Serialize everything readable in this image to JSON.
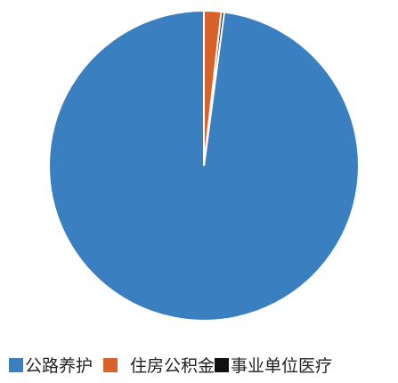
{
  "chart_data": {
    "type": "pie",
    "categories": [
      "公路养护",
      "住房公积金",
      "事业单位医疗"
    ],
    "values": [
      97.9,
      1.8,
      0.3
    ],
    "colors": [
      "#3a80c0",
      "#d9622b",
      "#111111"
    ],
    "legend_position": "bottom"
  },
  "legend": {
    "items": [
      {
        "label": "公路养护",
        "color": "#3a80c0"
      },
      {
        "label": "住房公积金",
        "color": "#d9622b"
      },
      {
        "label": "事业单位医疗",
        "color": "#111111"
      }
    ]
  }
}
